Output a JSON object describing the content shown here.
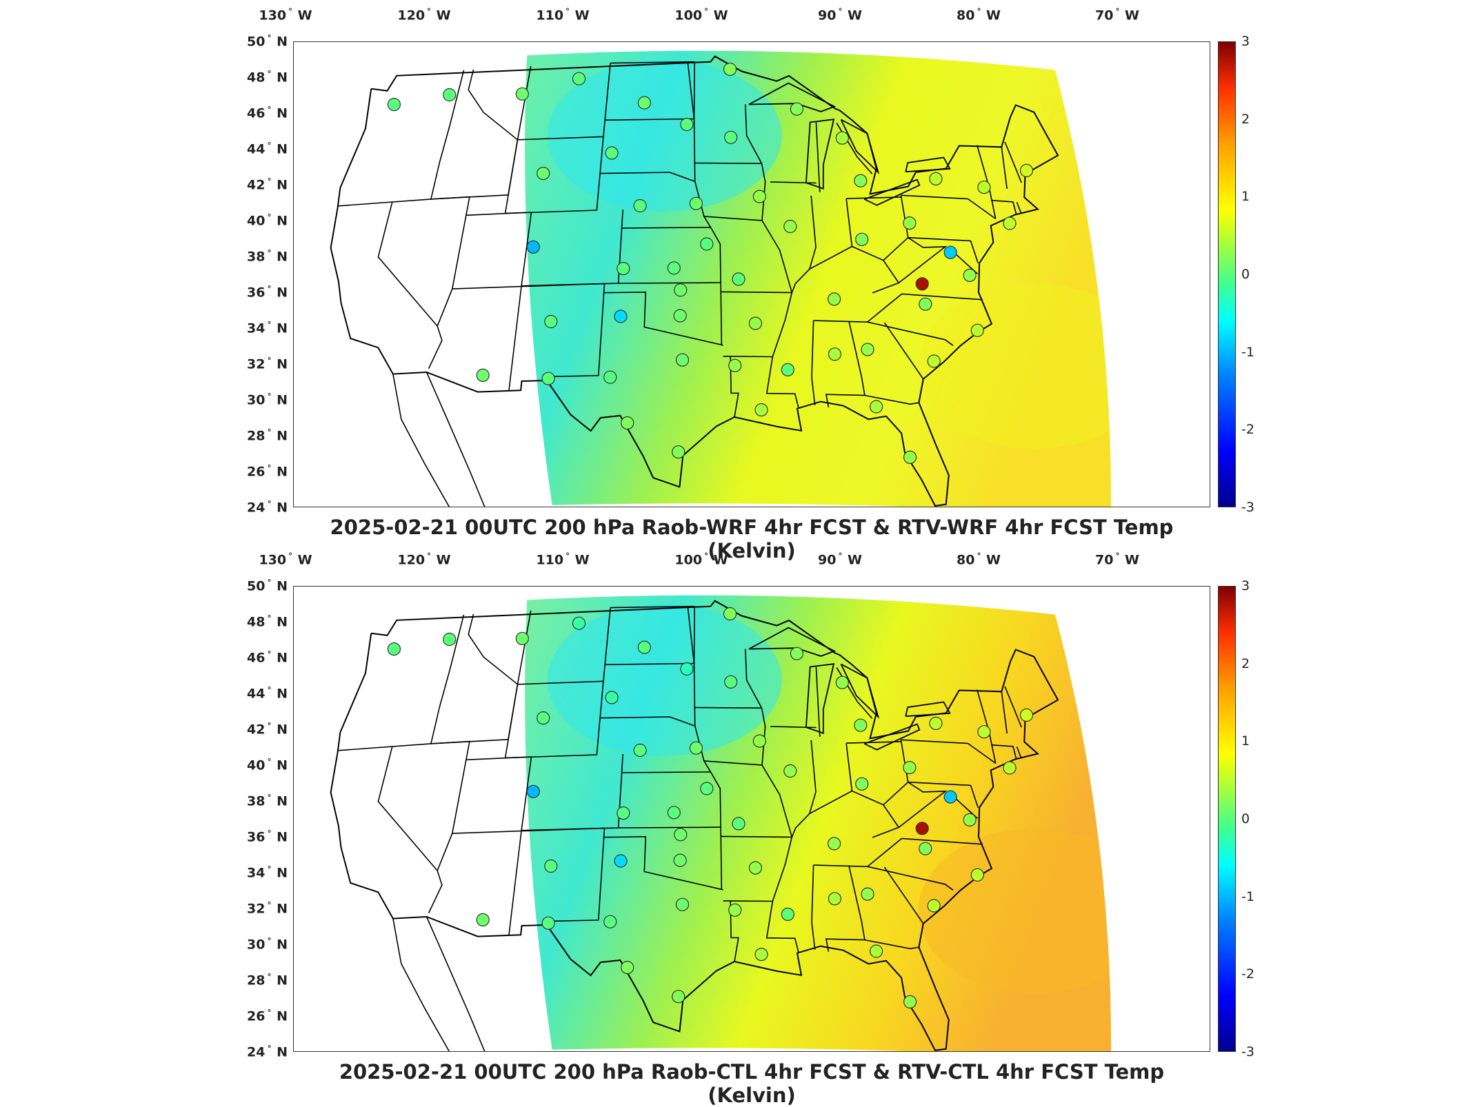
{
  "panels": [
    {
      "title": "2025-02-21 00UTC 200 hPa Raob-WRF 4hr FCST & RTV-WRF 4hr FCST Temp (Kelvin)",
      "lon_labels": [
        "130",
        "120",
        "110",
        "100",
        "90",
        "80",
        "70"
      ],
      "lon_suffix": "W",
      "lat_labels": [
        "50",
        "48",
        "46",
        "44",
        "42",
        "40",
        "38",
        "36",
        "34",
        "32",
        "30",
        "28",
        "26",
        "24"
      ],
      "lat_suffix": "N",
      "colorbar": {
        "ticks": [
          "3",
          "2",
          "1",
          "0",
          "-1",
          "-2",
          "-3"
        ],
        "min": -3,
        "max": 3
      },
      "stations": [
        {
          "lon": -122.2,
          "lat": 47.4,
          "v": 0.0
        },
        {
          "lon": -117.6,
          "lat": 47.7,
          "v": 0.0
        },
        {
          "lon": -111.3,
          "lat": 47.5,
          "v": 0.1
        },
        {
          "lon": -106.6,
          "lat": 48.2,
          "v": 0.0
        },
        {
          "lon": -100.8,
          "lat": 46.8,
          "v": 0.1
        },
        {
          "lon": -93.5,
          "lat": 48.6,
          "v": 0.2
        },
        {
          "lon": -97.2,
          "lat": 45.6,
          "v": 0.0
        },
        {
          "lon": -93.6,
          "lat": 44.9,
          "v": 0.0
        },
        {
          "lon": -103.2,
          "lat": 44.1,
          "v": 0.0
        },
        {
          "lon": -108.5,
          "lat": 43.1,
          "v": 0.1
        },
        {
          "lon": -100.7,
          "lat": 41.2,
          "v": 0.0
        },
        {
          "lon": -96.4,
          "lat": 41.3,
          "v": 0.1
        },
        {
          "lon": -91.5,
          "lat": 41.7,
          "v": 0.3
        },
        {
          "lon": -89.3,
          "lat": 40.1,
          "v": 0.3
        },
        {
          "lon": -88.0,
          "lat": 46.5,
          "v": 0.2
        },
        {
          "lon": -84.5,
          "lat": 45.0,
          "v": 0.4
        },
        {
          "lon": -83.5,
          "lat": 42.7,
          "v": 0.2
        },
        {
          "lon": -84.0,
          "lat": 39.5,
          "v": 0.2
        },
        {
          "lon": -80.2,
          "lat": 40.5,
          "v": 0.3
        },
        {
          "lon": -77.5,
          "lat": 43.0,
          "v": 0.5
        },
        {
          "lon": -73.8,
          "lat": 42.7,
          "v": 0.5
        },
        {
          "lon": -70.0,
          "lat": 43.8,
          "v": 0.6
        },
        {
          "lon": -72.5,
          "lat": 40.8,
          "v": 0.5
        },
        {
          "lon": -77.5,
          "lat": 39.0,
          "v": -0.9
        },
        {
          "lon": -76.4,
          "lat": 37.8,
          "v": 0.3
        },
        {
          "lon": -80.0,
          "lat": 37.2,
          "v": 2.8
        },
        {
          "lon": -80.0,
          "lat": 36.1,
          "v": 0.2
        },
        {
          "lon": -76.6,
          "lat": 34.8,
          "v": 0.5
        },
        {
          "lon": -80.0,
          "lat": 33.0,
          "v": 0.5
        },
        {
          "lon": -86.5,
          "lat": 36.2,
          "v": 0.3
        },
        {
          "lon": -92.2,
          "lat": 34.8,
          "v": 0.3
        },
        {
          "lon": -93.3,
          "lat": 37.2,
          "v": 0.0
        },
        {
          "lon": -95.6,
          "lat": 39.1,
          "v": 0.0
        },
        {
          "lon": -98.0,
          "lat": 37.8,
          "v": 0.0
        },
        {
          "lon": -101.7,
          "lat": 37.8,
          "v": 0.0
        },
        {
          "lon": -97.5,
          "lat": 36.6,
          "v": 0.1
        },
        {
          "lon": -97.5,
          "lat": 35.2,
          "v": 0.1
        },
        {
          "lon": -101.7,
          "lat": 35.2,
          "v": -0.8
        },
        {
          "lon": -106.6,
          "lat": 35.0,
          "v": 0.0
        },
        {
          "lon": -108.5,
          "lat": 39.1,
          "v": -1.0
        },
        {
          "lon": -110.9,
          "lat": 32.2,
          "v": 0.1
        },
        {
          "lon": -106.4,
          "lat": 31.9,
          "v": 0.0
        },
        {
          "lon": -102.2,
          "lat": 31.9,
          "v": 0.0
        },
        {
          "lon": -97.3,
          "lat": 32.8,
          "v": 0.1
        },
        {
          "lon": -93.7,
          "lat": 32.5,
          "v": 0.3
        },
        {
          "lon": -90.1,
          "lat": 32.3,
          "v": 0.0
        },
        {
          "lon": -86.8,
          "lat": 33.2,
          "v": 0.4
        },
        {
          "lon": -84.5,
          "lat": 33.5,
          "v": 0.3
        },
        {
          "lon": -92.0,
          "lat": 30.1,
          "v": 0.4
        },
        {
          "lon": -100.9,
          "lat": 29.4,
          "v": 0.2
        },
        {
          "lon": -97.5,
          "lat": 27.8,
          "v": 0.2
        },
        {
          "lon": -84.3,
          "lat": 30.4,
          "v": 0.4
        },
        {
          "lon": -82.4,
          "lat": 27.7,
          "v": 0.3
        }
      ]
    },
    {
      "title": "2025-02-21 00UTC 200 hPa Raob-CTL 4hr FCST & RTV-CTL 4hr FCST Temp (Kelvin)",
      "lon_labels": [
        "130",
        "120",
        "110",
        "100",
        "90",
        "80",
        "70"
      ],
      "lon_suffix": "W",
      "lat_labels": [
        "50",
        "48",
        "46",
        "44",
        "42",
        "40",
        "38",
        "36",
        "34",
        "32",
        "30",
        "28",
        "26",
        "24"
      ],
      "lat_suffix": "N",
      "colorbar": {
        "ticks": [
          "3",
          "2",
          "1",
          "0",
          "-1",
          "-2",
          "-3"
        ],
        "min": -3,
        "max": 3
      },
      "stations": [
        {
          "lon": -122.2,
          "lat": 47.4,
          "v": 0.0
        },
        {
          "lon": -117.6,
          "lat": 47.7,
          "v": 0.0
        },
        {
          "lon": -111.3,
          "lat": 47.5,
          "v": 0.1
        },
        {
          "lon": -106.6,
          "lat": 48.2,
          "v": -0.2
        },
        {
          "lon": -100.8,
          "lat": 46.8,
          "v": 0.0
        },
        {
          "lon": -93.5,
          "lat": 48.6,
          "v": 0.2
        },
        {
          "lon": -97.2,
          "lat": 45.6,
          "v": -0.3
        },
        {
          "lon": -93.6,
          "lat": 44.9,
          "v": 0.0
        },
        {
          "lon": -103.2,
          "lat": 44.1,
          "v": -0.2
        },
        {
          "lon": -108.5,
          "lat": 43.1,
          "v": 0.0
        },
        {
          "lon": -100.7,
          "lat": 41.2,
          "v": 0.0
        },
        {
          "lon": -96.4,
          "lat": 41.3,
          "v": 0.1
        },
        {
          "lon": -91.5,
          "lat": 41.7,
          "v": 0.3
        },
        {
          "lon": -89.3,
          "lat": 40.1,
          "v": 0.3
        },
        {
          "lon": -88.0,
          "lat": 46.5,
          "v": 0.2
        },
        {
          "lon": -84.5,
          "lat": 45.0,
          "v": 0.3
        },
        {
          "lon": -83.5,
          "lat": 42.7,
          "v": 0.2
        },
        {
          "lon": -84.0,
          "lat": 39.5,
          "v": 0.2
        },
        {
          "lon": -80.2,
          "lat": 40.5,
          "v": 0.3
        },
        {
          "lon": -77.5,
          "lat": 43.0,
          "v": 0.5
        },
        {
          "lon": -73.8,
          "lat": 42.7,
          "v": 0.5
        },
        {
          "lon": -70.0,
          "lat": 43.8,
          "v": 0.6
        },
        {
          "lon": -72.5,
          "lat": 40.8,
          "v": 0.5
        },
        {
          "lon": -77.5,
          "lat": 39.0,
          "v": -0.9
        },
        {
          "lon": -76.4,
          "lat": 37.8,
          "v": 0.3
        },
        {
          "lon": -80.0,
          "lat": 37.2,
          "v": 2.8
        },
        {
          "lon": -80.0,
          "lat": 36.1,
          "v": 0.2
        },
        {
          "lon": -76.6,
          "lat": 34.8,
          "v": 0.5
        },
        {
          "lon": -80.0,
          "lat": 33.0,
          "v": 0.5
        },
        {
          "lon": -86.5,
          "lat": 36.2,
          "v": 0.3
        },
        {
          "lon": -92.2,
          "lat": 34.8,
          "v": 0.3
        },
        {
          "lon": -93.3,
          "lat": 37.2,
          "v": 0.0
        },
        {
          "lon": -95.6,
          "lat": 39.1,
          "v": 0.0
        },
        {
          "lon": -98.0,
          "lat": 37.8,
          "v": 0.0
        },
        {
          "lon": -101.7,
          "lat": 37.8,
          "v": 0.0
        },
        {
          "lon": -97.5,
          "lat": 36.6,
          "v": 0.1
        },
        {
          "lon": -97.5,
          "lat": 35.2,
          "v": 0.1
        },
        {
          "lon": -101.7,
          "lat": 35.2,
          "v": -0.8
        },
        {
          "lon": -106.6,
          "lat": 35.0,
          "v": 0.0
        },
        {
          "lon": -108.5,
          "lat": 39.1,
          "v": -1.0
        },
        {
          "lon": -110.9,
          "lat": 32.2,
          "v": 0.1
        },
        {
          "lon": -106.4,
          "lat": 31.9,
          "v": 0.0
        },
        {
          "lon": -102.2,
          "lat": 31.9,
          "v": 0.0
        },
        {
          "lon": -97.3,
          "lat": 32.8,
          "v": 0.1
        },
        {
          "lon": -93.7,
          "lat": 32.5,
          "v": 0.3
        },
        {
          "lon": -90.1,
          "lat": 32.3,
          "v": 0.0
        },
        {
          "lon": -86.8,
          "lat": 33.2,
          "v": 0.4
        },
        {
          "lon": -84.5,
          "lat": 33.5,
          "v": 0.3
        },
        {
          "lon": -92.0,
          "lat": 30.1,
          "v": 0.4
        },
        {
          "lon": -100.9,
          "lat": 29.4,
          "v": 0.2
        },
        {
          "lon": -97.5,
          "lat": 27.8,
          "v": 0.2
        },
        {
          "lon": -84.3,
          "lat": 30.4,
          "v": 0.4
        },
        {
          "lon": -82.4,
          "lat": 27.7,
          "v": 0.3
        }
      ]
    }
  ]
}
